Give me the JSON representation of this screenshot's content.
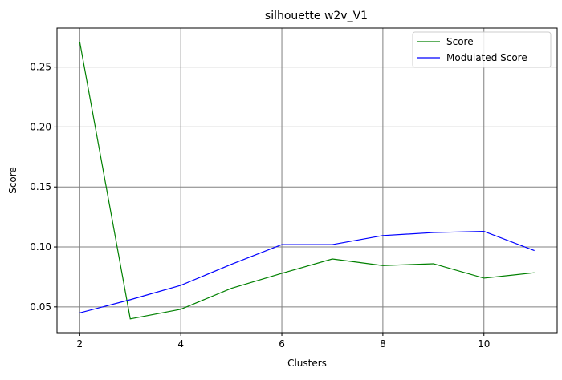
{
  "chart_data": {
    "type": "line",
    "title": "silhouette w2v_V1",
    "xlabel": "Clusters",
    "ylabel": "Score",
    "x": [
      2,
      3,
      4,
      5,
      6,
      7,
      8,
      9,
      10,
      11
    ],
    "xticks": [
      2,
      4,
      6,
      8,
      10
    ],
    "yticks": [
      0.05,
      0.1,
      0.15,
      0.2,
      0.25
    ],
    "ytick_labels": [
      "0.05",
      "0.10",
      "0.15",
      "0.20",
      "0.25"
    ],
    "xlim": [
      1.55,
      11.45
    ],
    "ylim": [
      0.0285,
      0.2825
    ],
    "grid": true,
    "legend_position": "top-right",
    "series": [
      {
        "name": "Score",
        "color": "#008000",
        "values": [
          0.271,
          0.04,
          0.048,
          0.0655,
          0.078,
          0.09,
          0.0845,
          0.086,
          0.074,
          0.0785
        ]
      },
      {
        "name": "Modulated Score",
        "color": "#0000ff",
        "values": [
          0.045,
          0.056,
          0.068,
          0.0855,
          0.102,
          0.102,
          0.1095,
          0.112,
          0.113,
          0.097
        ]
      }
    ]
  }
}
